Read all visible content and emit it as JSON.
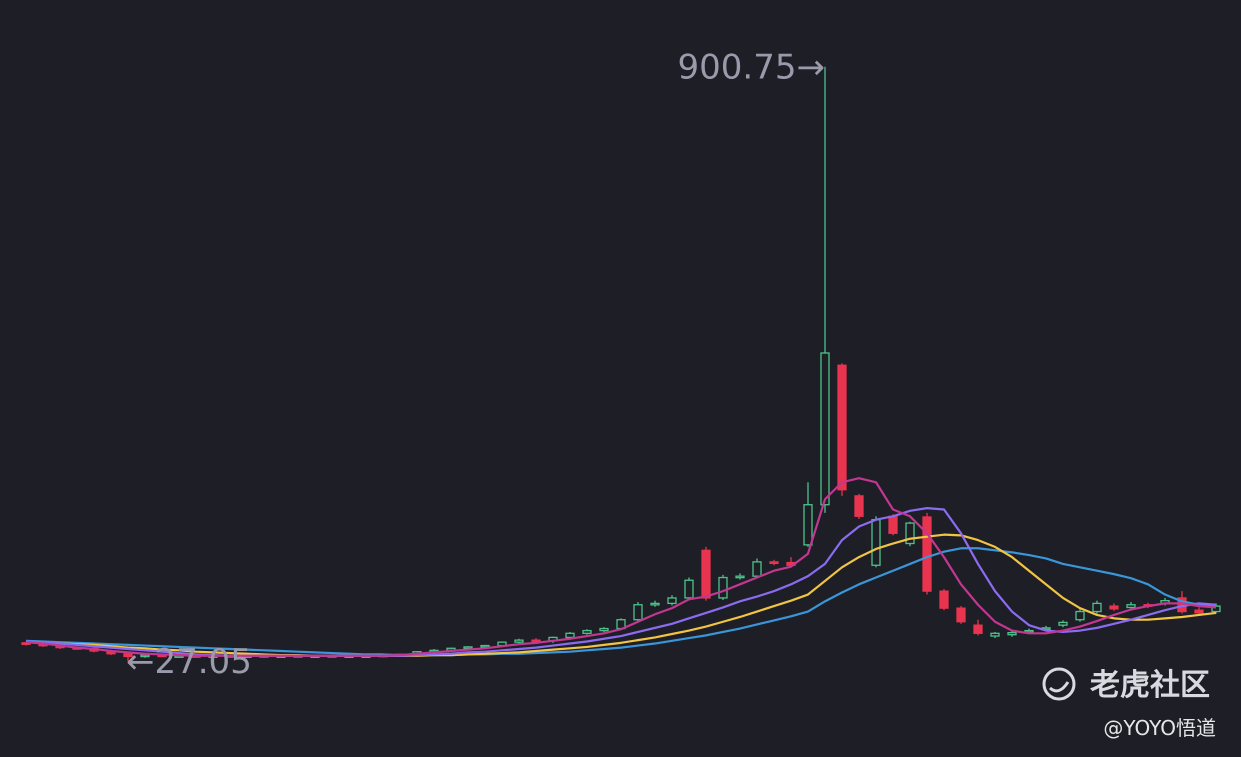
{
  "chart_data": {
    "type": "candlestick",
    "open": [
      54,
      52,
      50,
      47,
      46,
      42,
      38,
      34,
      36,
      35,
      35,
      34,
      35,
      34,
      35,
      34,
      35,
      34,
      35,
      34,
      35,
      35,
      36,
      37,
      41,
      43,
      46,
      48,
      50,
      55,
      58,
      57,
      62,
      68,
      72,
      75,
      88,
      110,
      112,
      120,
      190,
      120,
      150,
      152,
      173,
      172,
      198,
      257,
      462,
      270,
      168,
      240,
      200,
      239,
      130,
      105,
      80,
      64,
      66,
      70,
      74,
      80,
      88,
      100,
      108,
      106,
      110,
      112,
      120,
      102,
      100
    ],
    "high": [
      56,
      54,
      52,
      49,
      48,
      44,
      40,
      37,
      38,
      37,
      37,
      36,
      37,
      36,
      37,
      36,
      37,
      36,
      37,
      36,
      37,
      37,
      38,
      42,
      45,
      47,
      49,
      51,
      56,
      60,
      61,
      63,
      70,
      74,
      77,
      90,
      114,
      116,
      124,
      150,
      195,
      154,
      156,
      178,
      176,
      180,
      290,
      900.75,
      465,
      273,
      240,
      243,
      232,
      245,
      133,
      108,
      88,
      70,
      72,
      75,
      79,
      87,
      104,
      116,
      112,
      114,
      113,
      120,
      130,
      106,
      112
    ],
    "low": [
      50,
      48,
      45,
      44,
      40,
      36,
      27.05,
      32,
      33,
      33,
      32,
      32,
      32,
      32,
      32,
      32,
      32,
      32,
      32,
      32,
      33,
      33,
      34,
      35,
      39,
      41,
      44,
      46,
      48,
      53,
      55,
      54,
      60,
      66,
      70,
      73,
      86,
      107,
      109,
      117,
      116,
      117,
      147,
      149,
      168,
      165,
      195,
      245,
      270,
      236,
      165,
      212,
      196,
      125,
      102,
      82,
      65,
      61,
      63,
      67,
      71,
      77,
      85,
      97,
      101,
      104,
      105,
      109,
      97,
      95,
      97
    ],
    "close": [
      52,
      50,
      47,
      46,
      42,
      38,
      34,
      36,
      35,
      35,
      34,
      35,
      34,
      35,
      34,
      35,
      34,
      35,
      34,
      35,
      35,
      36,
      37,
      41,
      43,
      46,
      48,
      50,
      55,
      58,
      57,
      62,
      68,
      72,
      75,
      88,
      110,
      112,
      120,
      146,
      120,
      150,
      152,
      173,
      172,
      168,
      257,
      480,
      279,
      240,
      235,
      215,
      230,
      130,
      105,
      85,
      68,
      68,
      69,
      72,
      76,
      84,
      100,
      112,
      104,
      110,
      108,
      116,
      100,
      98,
      108
    ],
    "up_color": "#4cc38a",
    "down_color": "#e8344e",
    "ylim": [
      -30,
      940
    ],
    "series": [
      {
        "color": "#3a96d8",
        "values": [
          57,
          56,
          55,
          54,
          53,
          52,
          51,
          50,
          49,
          48,
          47,
          46,
          45,
          44,
          43,
          42,
          41,
          40,
          39,
          38,
          37,
          37,
          36,
          36,
          36,
          36,
          37,
          37,
          38,
          38,
          39,
          40,
          41,
          43,
          45,
          47,
          50,
          53,
          57,
          61,
          65,
          70,
          75,
          81,
          87,
          93,
          100,
          115,
          128,
          140,
          150,
          160,
          170,
          180,
          188,
          193,
          193,
          190,
          187,
          183,
          178,
          170,
          165,
          160,
          155,
          149,
          140,
          125,
          115,
          110,
          108
        ]
      },
      {
        "color": "#f2c444",
        "values": [
          55,
          54,
          53,
          52,
          51,
          49,
          47,
          46,
          44,
          43,
          41,
          40,
          39,
          38,
          37,
          36,
          36,
          35,
          35,
          35,
          35,
          35,
          35,
          35,
          36,
          36,
          37,
          38,
          39,
          40,
          42,
          44,
          46,
          48,
          51,
          54,
          58,
          62,
          67,
          72,
          78,
          85,
          92,
          100,
          108,
          116,
          125,
          145,
          165,
          180,
          192,
          200,
          207,
          210,
          213,
          212,
          205,
          195,
          180,
          160,
          140,
          120,
          105,
          95,
          90,
          88,
          88,
          90,
          92,
          95,
          98
        ]
      },
      {
        "color": "#8b6cf0",
        "values": [
          56,
          55,
          53,
          51,
          49,
          47,
          45,
          43,
          41,
          39,
          37,
          36,
          35,
          35,
          35,
          35,
          35,
          35,
          35,
          35,
          35,
          35,
          35,
          36,
          37,
          38,
          40,
          41,
          43,
          45,
          47,
          50,
          53,
          56,
          60,
          64,
          70,
          76,
          82,
          90,
          98,
          106,
          115,
          122,
          130,
          140,
          152,
          170,
          205,
          225,
          235,
          240,
          248,
          252,
          250,
          215,
          170,
          130,
          100,
          80,
          72,
          70,
          72,
          76,
          82,
          88,
          95,
          102,
          108,
          112,
          110
        ]
      },
      {
        "color": "#c2378f",
        "values": [
          55,
          53,
          50,
          47,
          45,
          42,
          40,
          38,
          37,
          36,
          35,
          35,
          35,
          35,
          35,
          35,
          35,
          35,
          35,
          35,
          35,
          35,
          36,
          38,
          40,
          42,
          44,
          46,
          49,
          52,
          54,
          57,
          60,
          64,
          68,
          74,
          85,
          96,
          105,
          118,
          122,
          130,
          140,
          150,
          160,
          166,
          185,
          265,
          290,
          296,
          290,
          250,
          240,
          215,
          180,
          140,
          110,
          85,
          72,
          68,
          68,
          72,
          78,
          86,
          95,
          103,
          108,
          112,
          112,
          108,
          106
        ]
      }
    ],
    "annotations": [
      {
        "text": "900.75→",
        "index": 47
      },
      {
        "text": "←27.05",
        "index": 6
      }
    ]
  },
  "watermark": {
    "brand": "老虎社区",
    "author": "@YOYO悟道"
  }
}
